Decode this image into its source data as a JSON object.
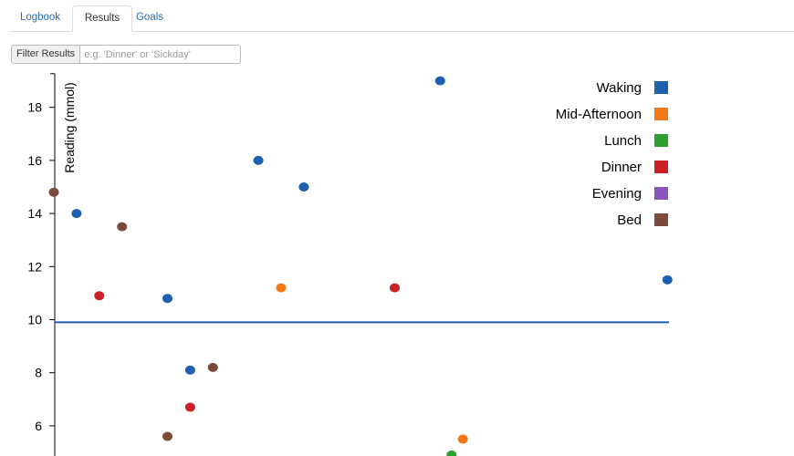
{
  "tabs": [
    {
      "label": "Logbook",
      "active": false
    },
    {
      "label": "Results",
      "active": true
    },
    {
      "label": "Goals",
      "active": false
    }
  ],
  "filter": {
    "button_label": "Filter Results",
    "placeholder": "e.g. 'Dinner' or 'Sickday'",
    "value": ""
  },
  "chart_data": {
    "type": "scatter",
    "ylabel": "Reading (mmol)",
    "xlabel": "",
    "y_ticks": [
      6,
      8,
      10,
      12,
      14,
      16,
      18
    ],
    "ylim": [
      4.8,
      19.2
    ],
    "goal_line": 9.9,
    "legend_position": "top-right",
    "series": [
      {
        "name": "Waking",
        "color": "#1f5fb0",
        "points": [
          [
            1,
            14
          ],
          [
            5,
            10.8
          ],
          [
            6,
            8.1
          ],
          [
            9,
            16
          ],
          [
            11,
            15
          ],
          [
            17,
            19
          ],
          [
            27,
            11.5
          ]
        ]
      },
      {
        "name": "Mid-Afternoon",
        "color": "#f07818",
        "points": [
          [
            10,
            11.2
          ],
          [
            18,
            5.5
          ]
        ]
      },
      {
        "name": "Lunch",
        "color": "#2ca02c",
        "points": [
          [
            17.5,
            4.9
          ]
        ]
      },
      {
        "name": "Dinner",
        "color": "#cc2027",
        "points": [
          [
            2,
            10.9
          ],
          [
            6,
            6.7
          ],
          [
            15,
            11.2
          ]
        ]
      },
      {
        "name": "Evening",
        "color": "#8a55c0",
        "points": []
      },
      {
        "name": "Bed",
        "color": "#7b4a3a",
        "points": [
          [
            0,
            14.8
          ],
          [
            3,
            13.5
          ],
          [
            5,
            5.6
          ],
          [
            7,
            8.2
          ]
        ]
      }
    ]
  }
}
